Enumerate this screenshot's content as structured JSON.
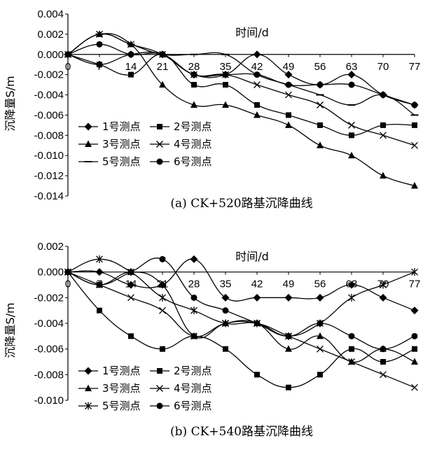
{
  "chart_data": [
    {
      "type": "line",
      "title": "(a) CK+520路基沉降曲线",
      "xlabel": "时间/d",
      "ylabel": "沉降量S/m",
      "x": [
        0,
        7,
        14,
        21,
        28,
        35,
        42,
        49,
        56,
        63,
        70,
        77
      ],
      "x_tick_labels": [
        "0",
        "7",
        "14",
        "21",
        "28",
        "35",
        "42",
        "49",
        "56",
        "63",
        "70",
        "77"
      ],
      "ylim": [
        -0.014,
        0.004
      ],
      "y_tick_labels": [
        "0.004",
        "0.002",
        "0.000",
        "-0.002",
        "-0.004",
        "-0.006",
        "-0.008",
        "-0.010",
        "-0.012",
        "-0.014"
      ],
      "legend": "lower-left",
      "series": [
        {
          "name": "1号测点",
          "marker": "diamond",
          "values": [
            0,
            -0.001,
            0,
            0,
            -0.002,
            -0.002,
            0,
            -0.002,
            -0.003,
            -0.002,
            -0.004,
            -0.005
          ]
        },
        {
          "name": "2号测点",
          "marker": "square",
          "values": [
            0,
            -0.001,
            -0.002,
            0,
            -0.003,
            -0.003,
            -0.005,
            -0.006,
            -0.007,
            -0.008,
            -0.007,
            -0.007
          ]
        },
        {
          "name": "3号测点",
          "marker": "triangle",
          "values": [
            0,
            0.002,
            0.001,
            -0.003,
            -0.005,
            -0.005,
            -0.006,
            -0.007,
            -0.009,
            -0.01,
            -0.012,
            -0.013
          ]
        },
        {
          "name": "4号测点",
          "marker": "x",
          "values": [
            0,
            0.002,
            0.001,
            0,
            -0.002,
            -0.002,
            -0.003,
            -0.004,
            -0.005,
            -0.007,
            -0.008,
            -0.009
          ]
        },
        {
          "name": "5号测点",
          "marker": "dash",
          "values": [
            0,
            0.002,
            0.001,
            0,
            0,
            0,
            -0.002,
            -0.003,
            -0.004,
            -0.005,
            -0.004,
            -0.006
          ]
        },
        {
          "name": "6号测点",
          "marker": "circle",
          "values": [
            0,
            0.001,
            0,
            0,
            -0.002,
            -0.002,
            -0.002,
            -0.003,
            -0.003,
            -0.003,
            -0.004,
            -0.005
          ]
        }
      ]
    },
    {
      "type": "line",
      "title": "(b) CK+540路基沉降曲线",
      "xlabel": "时间/d",
      "ylabel": "沉降量S/m",
      "x": [
        0,
        7,
        14,
        21,
        28,
        35,
        42,
        49,
        56,
        63,
        70,
        77
      ],
      "x_tick_labels": [
        "0",
        "7",
        "14",
        "21",
        "28",
        "35",
        "42",
        "49",
        "56",
        "63",
        "70",
        "77"
      ],
      "ylim": [
        -0.01,
        0.002
      ],
      "y_tick_labels": [
        "0.002",
        "0.000",
        "-0.002",
        "-0.004",
        "-0.006",
        "-0.008",
        "-0.010"
      ],
      "legend": "lower-left",
      "series": [
        {
          "name": "1号测点",
          "marker": "diamond",
          "values": [
            0,
            0,
            -0.001,
            -0.001,
            0.001,
            -0.002,
            -0.002,
            -0.002,
            -0.002,
            -0.001,
            -0.002,
            -0.003
          ]
        },
        {
          "name": "2号测点",
          "marker": "square",
          "values": [
            0,
            -0.003,
            -0.005,
            -0.006,
            -0.005,
            -0.006,
            -0.008,
            -0.009,
            -0.008,
            -0.006,
            -0.007,
            -0.006
          ]
        },
        {
          "name": "3号测点",
          "marker": "triangle",
          "values": [
            0,
            -0.001,
            0,
            -0.001,
            -0.005,
            -0.004,
            -0.004,
            -0.006,
            -0.005,
            -0.007,
            -0.006,
            -0.007
          ]
        },
        {
          "name": "4号测点",
          "marker": "x",
          "values": [
            0,
            -0.001,
            -0.002,
            -0.003,
            -0.005,
            -0.004,
            -0.004,
            -0.005,
            -0.006,
            -0.007,
            -0.008,
            -0.009
          ]
        },
        {
          "name": "5号测点",
          "marker": "star",
          "values": [
            0,
            0.001,
            0,
            -0.002,
            -0.003,
            -0.004,
            -0.004,
            -0.005,
            -0.004,
            -0.002,
            -0.001,
            0
          ]
        },
        {
          "name": "6号测点",
          "marker": "circle",
          "values": [
            0,
            -0.001,
            0,
            0.001,
            -0.002,
            -0.003,
            -0.004,
            -0.005,
            -0.004,
            -0.005,
            -0.006,
            -0.005
          ]
        }
      ]
    }
  ]
}
